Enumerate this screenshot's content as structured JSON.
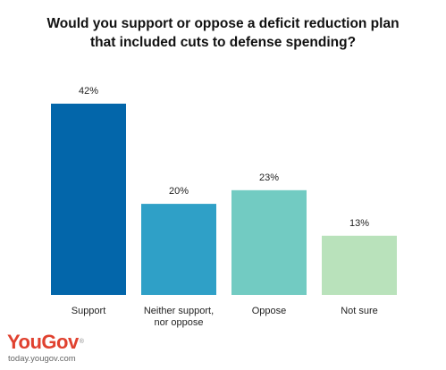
{
  "chart_data": {
    "type": "bar",
    "title_lines": [
      "Would you support or oppose a deficit reduction plan",
      "that included cuts to defense spending?"
    ],
    "categories": [
      [
        "Support"
      ],
      [
        "Neither support,",
        "nor oppose"
      ],
      [
        "Oppose"
      ],
      [
        "Not sure"
      ]
    ],
    "values": [
      42,
      20,
      23,
      13
    ],
    "value_labels": [
      "42%",
      "20%",
      "23%",
      "13%"
    ],
    "colors": [
      "#0366aa",
      "#2fa0c7",
      "#72cbc2",
      "#b9e2bb"
    ],
    "ylim": [
      0,
      42
    ]
  },
  "branding": {
    "logo_you": "You",
    "logo_gov": "Gov",
    "logo_mark": "®",
    "site": "today.yougov.com"
  }
}
